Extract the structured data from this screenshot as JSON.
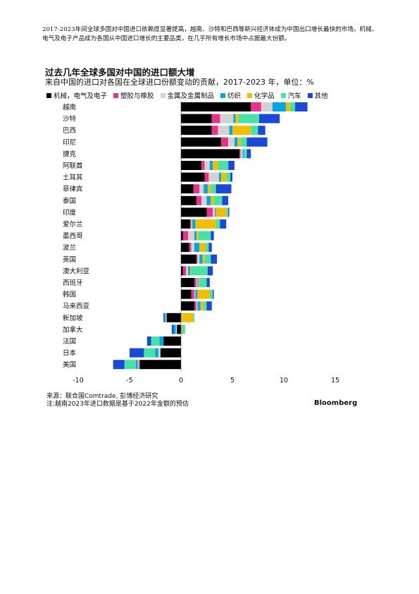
{
  "intro_text": "2017-2023年间全球多国对中国进口依赖度显著提高，越南、沙特和巴西等新兴经济体成为中国出口增长最快的市场。机械、电气及电子产品成为各国从中国进口增长的主要品类，在几乎所有增长市场中占据最大份额。",
  "brand": "Bloomberg",
  "footer": {
    "source": "来源：联合国Comtrade, 彭博经济研究",
    "note": "注:越南2023年进口数据是基于2022年金额的预估"
  },
  "chart_data": {
    "type": "bar",
    "orientation": "horizontal",
    "stacked": true,
    "title": "过去几年全球多国对中国的进口额大增",
    "subtitle": "来自中国的进口对各国在全球进口份额变动的贡献，2017-2023 年，单位：%",
    "xlim": [
      -10,
      15
    ],
    "xticks": [
      "-10",
      "-5",
      "0",
      "5",
      "10",
      "15"
    ],
    "grid": false,
    "legend_position": "top",
    "categories": [
      "越南",
      "沙特",
      "巴西",
      "印尼",
      "捷克",
      "阿联酋",
      "土耳其",
      "菲律宾",
      "泰国",
      "印度",
      "爱尔兰",
      "墨西哥",
      "波兰",
      "英国",
      "澳大利亚",
      "西班牙",
      "韩国",
      "马来西亚",
      "新加坡",
      "加拿大",
      "法国",
      "日本",
      "美国"
    ],
    "series": [
      {
        "name": "机械，电气及电子",
        "color": "#000000",
        "values": [
          6.8,
          3.0,
          3.0,
          3.9,
          5.7,
          2.0,
          2.3,
          1.2,
          1.5,
          2.5,
          0.9,
          0.2,
          0.8,
          1.5,
          0.2,
          1.3,
          1.0,
          1.3,
          -1.4,
          -0.4,
          -1.7,
          -2.0,
          -4.0
        ]
      },
      {
        "name": "塑胶与橡胶",
        "color": "#e8318d",
        "values": [
          1.0,
          0.8,
          0.6,
          0.7,
          0.1,
          0.3,
          0.4,
          0.6,
          0.5,
          0.6,
          0.1,
          0.5,
          0.2,
          0.1,
          0.3,
          0.2,
          0.3,
          0.2,
          0.0,
          0.0,
          0.0,
          0.0,
          -0.1
        ]
      },
      {
        "name": "金属及金属制品",
        "color": "#d2d2d2",
        "values": [
          1.1,
          1.3,
          1.1,
          0.6,
          0.2,
          0.5,
          1.0,
          0.4,
          0.5,
          0.2,
          0.1,
          0.6,
          0.3,
          0.2,
          0.2,
          0.1,
          0.1,
          0.1,
          -0.1,
          -0.1,
          0.0,
          -0.2,
          -0.1
        ]
      },
      {
        "name": "纺织",
        "color": "#00a6e8",
        "values": [
          1.3,
          0.2,
          0.3,
          0.3,
          0.1,
          0.3,
          0.2,
          0.4,
          0.4,
          0.1,
          0.3,
          0.2,
          0.5,
          0.3,
          0.2,
          0.1,
          0.2,
          0.3,
          -0.1,
          -0.2,
          -0.4,
          -0.3,
          -0.2
        ]
      },
      {
        "name": "化学品",
        "color": "#f2be00",
        "values": [
          0.4,
          0.3,
          1.8,
          0.3,
          0.0,
          0.5,
          0.5,
          0.3,
          0.3,
          1.0,
          2.0,
          0.2,
          0.6,
          0.2,
          0.1,
          0.1,
          1.2,
          0.3,
          1.2,
          0.1,
          0.0,
          0.0,
          0.0
        ]
      },
      {
        "name": "汽车",
        "color": "#48e3a4",
        "values": [
          0.5,
          2.0,
          0.7,
          0.6,
          0.3,
          1.0,
          0.4,
          0.5,
          0.8,
          0.2,
          0.4,
          1.2,
          0.3,
          0.6,
          1.6,
          0.7,
          0.3,
          0.3,
          0.1,
          0.3,
          -0.8,
          -1.1,
          -1.1
        ]
      },
      {
        "name": "其他",
        "color": "#1a49d8",
        "values": [
          1.2,
          2.0,
          0.7,
          2.0,
          0.4,
          0.6,
          0.2,
          1.5,
          0.6,
          0.1,
          0.6,
          0.3,
          0.3,
          0.6,
          0.5,
          0.3,
          0.1,
          0.5,
          -0.1,
          -0.2,
          -0.4,
          -1.4,
          -1.1
        ]
      }
    ]
  }
}
